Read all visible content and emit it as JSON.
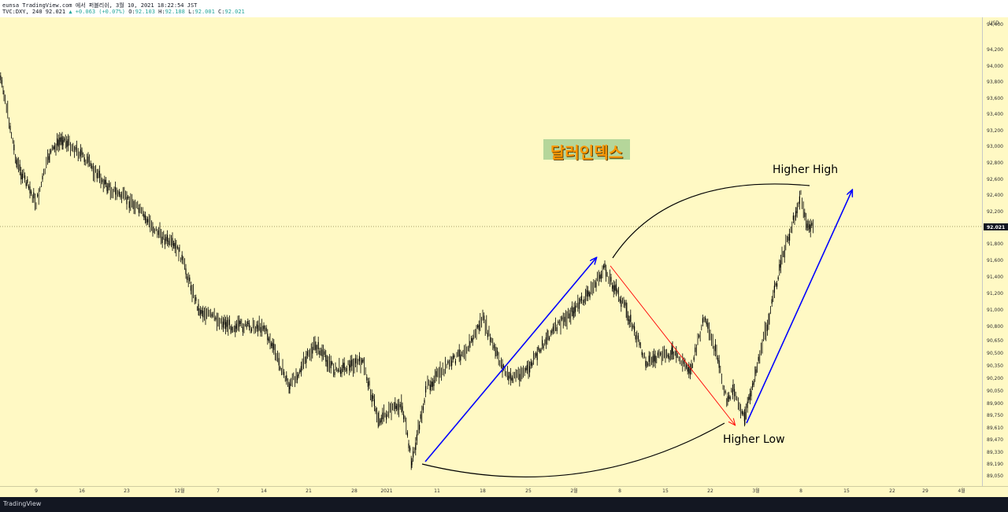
{
  "header": {
    "line1": "eunsa TradingView.com 에서 퍼블리쉬, 3월 10, 2021 18:22:54 JST",
    "symbol": "TVC:DXY, 240",
    "last": "92.021",
    "change": "▲ +0.063 (+0.07%)",
    "ohlc_o_label": "O:",
    "ohlc_o": "92.103",
    "ohlc_h_label": "H:",
    "ohlc_h": "92.188",
    "ohlc_l_label": "L:",
    "ohlc_l": "92.001",
    "ohlc_c_label": "C:",
    "ohlc_c": "92.021"
  },
  "badge": {
    "text": "달러인덱스"
  },
  "footer": {
    "brand": "TradingView"
  },
  "colors": {
    "background": "#fff9c4",
    "up_arrow": "#0000ff",
    "down_arrow": "#ff0000",
    "candle": "#000000",
    "price_label": "#131722"
  },
  "chart_data": {
    "type": "candlestick",
    "currency": "USD",
    "last_price_label": "92.021",
    "y_tick_labels": [
      "94,400",
      "94,200",
      "94,000",
      "93,800",
      "93,600",
      "93,400",
      "93,200",
      "93,000",
      "92,800",
      "92,600",
      "92,400",
      "92,200",
      "91,800",
      "91,600",
      "91,400",
      "91,200",
      "91,000",
      "90,800",
      "90,650",
      "90,500",
      "90,350",
      "90,200",
      "90,050",
      "89,900",
      "89,750",
      "89,610",
      "89,470",
      "89,330",
      "89,190",
      "89,050"
    ],
    "x_tick_labels": [
      "9",
      "16",
      "23",
      "12월",
      "7",
      "14",
      "21",
      "28",
      "2021",
      "11",
      "18",
      "25",
      "2월",
      "8",
      "15",
      "22",
      "3월",
      "8",
      "15",
      "22",
      "29",
      "4월"
    ],
    "ylim": [
      89.0,
      94.5
    ],
    "grid": false,
    "price_path": [
      {
        "x": "Nov 2",
        "y": 94.2
      },
      {
        "x": "Nov 4",
        "y": 93.7
      },
      {
        "x": "Nov 6",
        "y": 92.8
      },
      {
        "x": "Nov 9",
        "y": 92.3
      },
      {
        "x": "Nov 11",
        "y": 92.9
      },
      {
        "x": "Nov 13",
        "y": 93.1
      },
      {
        "x": "Nov 16",
        "y": 92.9
      },
      {
        "x": "Nov 20",
        "y": 92.5
      },
      {
        "x": "Nov 24",
        "y": 92.3
      },
      {
        "x": "Nov 27",
        "y": 92.0
      },
      {
        "x": "Dec 1",
        "y": 91.7
      },
      {
        "x": "Dec 4",
        "y": 91.0
      },
      {
        "x": "Dec 9",
        "y": 90.8
      },
      {
        "x": "Dec 14",
        "y": 90.8
      },
      {
        "x": "Dec 18",
        "y": 90.1
      },
      {
        "x": "Dec 22",
        "y": 90.6
      },
      {
        "x": "Dec 25",
        "y": 90.3
      },
      {
        "x": "Dec 29",
        "y": 90.4
      },
      {
        "x": "Dec 31",
        "y": 89.7
      },
      {
        "x": "Jan 4",
        "y": 89.9
      },
      {
        "x": "Jan 6",
        "y": 89.2
      },
      {
        "x": "Jan 9",
        "y": 90.1
      },
      {
        "x": "Jan 12",
        "y": 90.3
      },
      {
        "x": "Jan 16",
        "y": 90.6
      },
      {
        "x": "Jan 18",
        "y": 90.9
      },
      {
        "x": "Jan 20",
        "y": 90.5
      },
      {
        "x": "Jan 22",
        "y": 90.2
      },
      {
        "x": "Jan 25",
        "y": 90.3
      },
      {
        "x": "Jan 28",
        "y": 90.7
      },
      {
        "x": "Feb 1",
        "y": 91.0
      },
      {
        "x": "Feb 3",
        "y": 91.2
      },
      {
        "x": "Feb 5",
        "y": 91.5
      },
      {
        "x": "Feb 8",
        "y": 91.0
      },
      {
        "x": "Feb 11",
        "y": 90.4
      },
      {
        "x": "Feb 15",
        "y": 90.5
      },
      {
        "x": "Feb 18",
        "y": 90.3
      },
      {
        "x": "Feb 20",
        "y": 90.9
      },
      {
        "x": "Feb 22",
        "y": 90.5
      },
      {
        "x": "Feb 24",
        "y": 89.9
      },
      {
        "x": "Feb 25",
        "y": 90.1
      },
      {
        "x": "Feb 27",
        "y": 89.7
      },
      {
        "x": "Mar 1",
        "y": 90.3
      },
      {
        "x": "Mar 3",
        "y": 90.9
      },
      {
        "x": "Mar 5",
        "y": 91.6
      },
      {
        "x": "Mar 8",
        "y": 92.4
      },
      {
        "x": "Mar 9",
        "y": 92.0
      },
      {
        "x": "Mar 10",
        "y": 92.021
      }
    ],
    "annotations": [
      {
        "text": "Higher High"
      },
      {
        "text": "Higher Low"
      }
    ]
  }
}
